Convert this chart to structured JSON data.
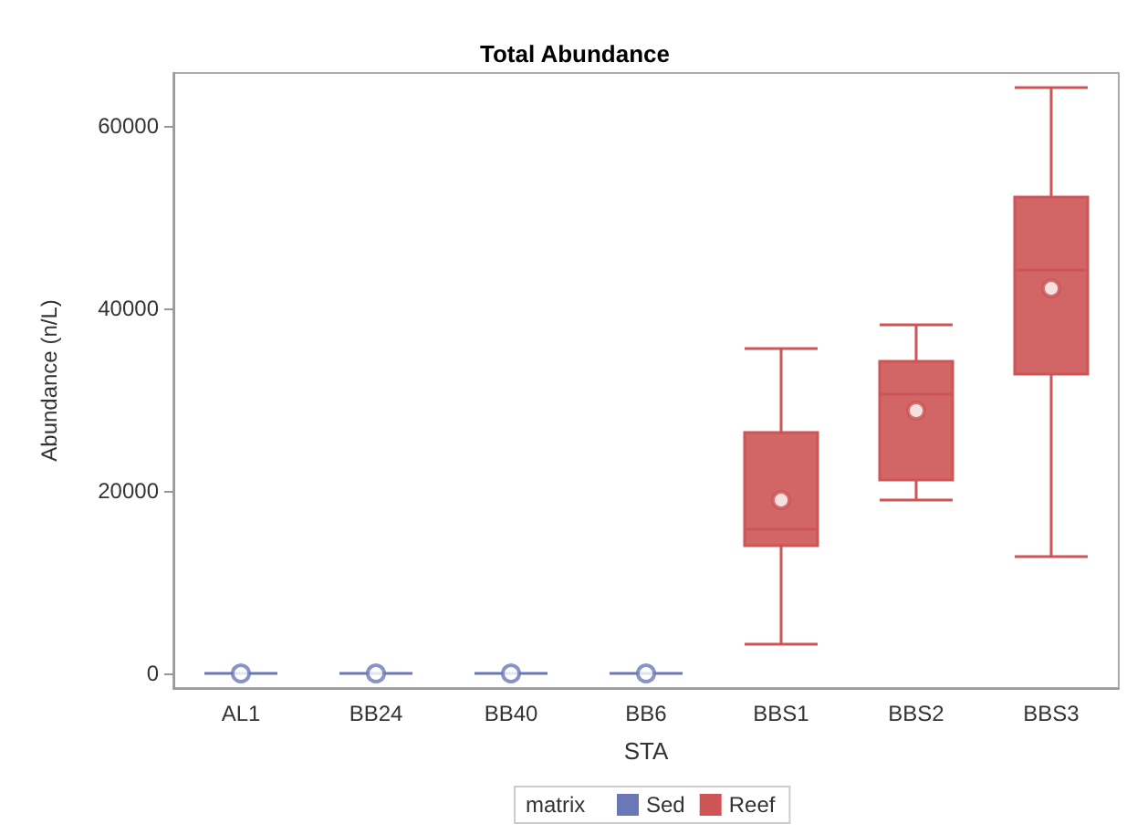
{
  "chart_data": {
    "type": "box",
    "title": "Total Abundance",
    "xlabel": "STA",
    "ylabel": "Abundance (n/L)",
    "legend_title": "matrix",
    "categories": [
      "AL1",
      "BB24",
      "BB40",
      "BB6",
      "BBS1",
      "BBS2",
      "BBS3"
    ],
    "ylim": [
      -1600,
      65800
    ],
    "yticks": [
      0,
      20000,
      40000,
      60000
    ],
    "grid": false,
    "legend": "bottom",
    "series": [
      {
        "name": "Sed",
        "color": "#6a78b8",
        "boxes": [
          {
            "low": 0,
            "q1": 0,
            "median": 0,
            "q3": 0,
            "high": 0,
            "mean": 0
          },
          {
            "low": 0,
            "q1": 0,
            "median": 0,
            "q3": 0,
            "high": 0,
            "mean": 0
          },
          {
            "low": 0,
            "q1": 0,
            "median": 0,
            "q3": 0,
            "high": 0,
            "mean": 0
          },
          {
            "low": 0,
            "q1": 0,
            "median": 0,
            "q3": 0,
            "high": 0,
            "mean": 0
          },
          null,
          null,
          null
        ]
      },
      {
        "name": "Reef",
        "color": "#cd5555",
        "boxes": [
          null,
          null,
          null,
          null,
          {
            "low": 3200,
            "q1": 14000,
            "median": 15800,
            "q3": 26400,
            "high": 35600,
            "mean": 19000
          },
          {
            "low": 19000,
            "q1": 21200,
            "median": 30600,
            "q3": 34200,
            "high": 38200,
            "mean": 28800
          },
          {
            "low": 12800,
            "q1": 32800,
            "median": 44200,
            "q3": 52200,
            "high": 64200,
            "mean": 42200
          }
        ]
      }
    ]
  }
}
